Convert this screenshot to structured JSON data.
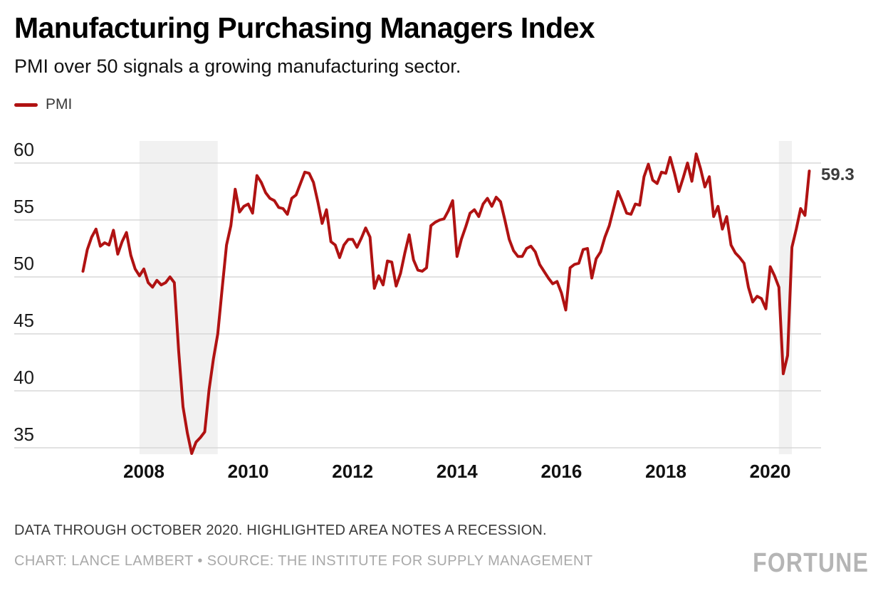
{
  "header": {
    "title": "Manufacturing Purchasing Managers Index",
    "subtitle": "PMI over 50 signals a growing manufacturing sector."
  },
  "legend": {
    "label": "PMI"
  },
  "chart_data": {
    "type": "line",
    "title": "Manufacturing Purchasing Managers Index",
    "xlabel": "",
    "ylabel": "",
    "x_ticks": [
      "2008",
      "2010",
      "2012",
      "2014",
      "2016",
      "2018",
      "2020"
    ],
    "y_ticks": [
      60,
      55,
      50,
      45,
      40,
      35
    ],
    "ylim": [
      34,
      62
    ],
    "xlim": [
      "2006-11",
      "2020-10"
    ],
    "grid": true,
    "legend_position": "top-left",
    "end_label": "59.3",
    "last_point": {
      "month": "2020-10",
      "value": 59.3
    },
    "recession_bands": [
      {
        "from": "2007-12",
        "to": "2009-06"
      },
      {
        "from": "2020-03",
        "to": "2020-06"
      }
    ],
    "colors": {
      "line": "#b01212",
      "band": "#f1f1f1",
      "grid": "#d8d8d8"
    },
    "series": [
      {
        "name": "PMI",
        "start_month": "2006-11",
        "frequency": "monthly",
        "values": [
          50.5,
          52.4,
          53.5,
          54.2,
          52.7,
          53.0,
          52.8,
          54.1,
          52.0,
          53.1,
          53.9,
          51.9,
          50.7,
          50.1,
          50.7,
          49.5,
          49.1,
          49.7,
          49.3,
          49.5,
          50.0,
          49.5,
          43.5,
          38.6,
          36.3,
          34.5,
          35.5,
          35.9,
          36.4,
          40.1,
          42.8,
          45.0,
          49.0,
          52.8,
          54.5,
          57.7,
          55.7,
          56.2,
          56.4,
          55.6,
          58.9,
          58.3,
          57.4,
          56.9,
          56.7,
          56.1,
          56.0,
          55.5,
          56.9,
          57.2,
          58.2,
          59.2,
          59.1,
          58.3,
          56.6,
          54.7,
          55.9,
          53.1,
          52.8,
          51.7,
          52.8,
          53.3,
          53.3,
          52.6,
          53.4,
          54.3,
          53.5,
          49.0,
          50.1,
          49.3,
          51.4,
          51.3,
          49.2,
          50.3,
          52.1,
          53.7,
          51.5,
          50.6,
          50.5,
          50.8,
          54.5,
          54.8,
          55.0,
          55.1,
          55.8,
          56.7,
          51.8,
          53.3,
          54.4,
          55.6,
          55.9,
          55.3,
          56.4,
          56.9,
          56.2,
          57.0,
          56.6,
          55.0,
          53.3,
          52.3,
          51.8,
          51.8,
          52.5,
          52.7,
          52.2,
          51.1,
          50.5,
          49.9,
          49.4,
          49.6,
          48.6,
          47.1,
          50.8,
          51.1,
          51.2,
          52.4,
          52.5,
          49.9,
          51.6,
          52.2,
          53.5,
          54.5,
          56.0,
          57.5,
          56.6,
          55.6,
          55.5,
          56.4,
          56.3,
          58.8,
          59.9,
          58.5,
          58.2,
          59.2,
          59.1,
          60.5,
          59.1,
          57.5,
          58.7,
          60.0,
          58.4,
          60.8,
          59.5,
          57.9,
          58.8,
          55.3,
          56.2,
          54.2,
          55.3,
          52.8,
          52.1,
          51.7,
          51.2,
          49.1,
          47.8,
          48.3,
          48.1,
          47.2,
          50.9,
          50.1,
          49.1,
          41.5,
          43.1,
          52.6,
          54.2,
          56.0,
          55.4,
          59.3
        ]
      }
    ]
  },
  "footer": {
    "note": "DATA THROUGH OCTOBER 2020. HIGHLIGHTED AREA NOTES A RECESSION.",
    "credit": "CHART: LANCE LAMBERT • SOURCE: THE INSTITUTE FOR SUPPLY MANAGEMENT",
    "brand": "FORTUNE"
  }
}
